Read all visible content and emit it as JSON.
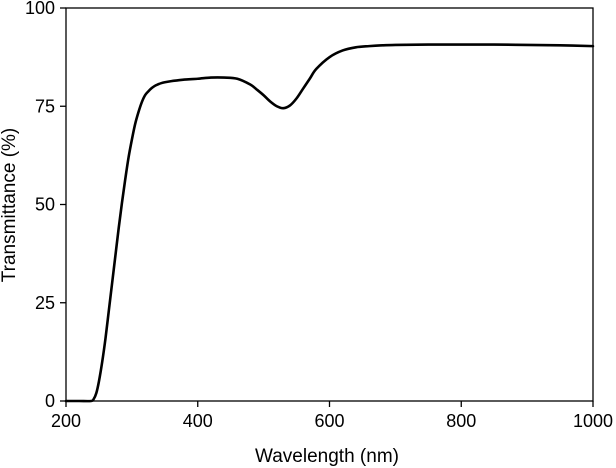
{
  "chart_data": {
    "type": "line",
    "title": "",
    "xlabel": "Wavelength (nm)",
    "ylabel": "Transmittance (%)",
    "xlim": [
      200,
      1000
    ],
    "ylim": [
      0,
      100
    ],
    "x_ticks": [
      200,
      400,
      600,
      800,
      1000
    ],
    "y_ticks": [
      0,
      25,
      50,
      75,
      100
    ],
    "x_tick_labels": [
      "200",
      "400",
      "600",
      "800",
      "1000"
    ],
    "y_tick_labels": [
      "0",
      "25",
      "50",
      "75",
      "100"
    ],
    "grid": false,
    "legend": "none",
    "line_color": "#000000",
    "series": [
      {
        "x": [
          200,
          220,
          238,
          242,
          246,
          250,
          255,
          260,
          265,
          270,
          275,
          280,
          285,
          290,
          295,
          300,
          305,
          310,
          315,
          320,
          325,
          330,
          335,
          340,
          345,
          350,
          360,
          370,
          380,
          400,
          420,
          440,
          460,
          480,
          490,
          500,
          510,
          520,
          530,
          540,
          550,
          560,
          570,
          580,
          600,
          620,
          640,
          660,
          680,
          700,
          750,
          800,
          850,
          900,
          950,
          1000
        ],
        "y": [
          0,
          0,
          0,
          0.5,
          2,
          5,
          10,
          16,
          23,
          30,
          37,
          44,
          50.5,
          56.5,
          62,
          66.5,
          70.5,
          73.5,
          76,
          77.8,
          78.8,
          79.6,
          80.2,
          80.6,
          80.9,
          81.1,
          81.4,
          81.6,
          81.8,
          82,
          82.3,
          82.3,
          82,
          80.5,
          79.2,
          77.8,
          76.2,
          75,
          74.5,
          75.2,
          77,
          79.5,
          82,
          84.5,
          87.5,
          89.2,
          90,
          90.3,
          90.5,
          90.6,
          90.7,
          90.7,
          90.7,
          90.6,
          90.5,
          90.3
        ]
      }
    ]
  }
}
